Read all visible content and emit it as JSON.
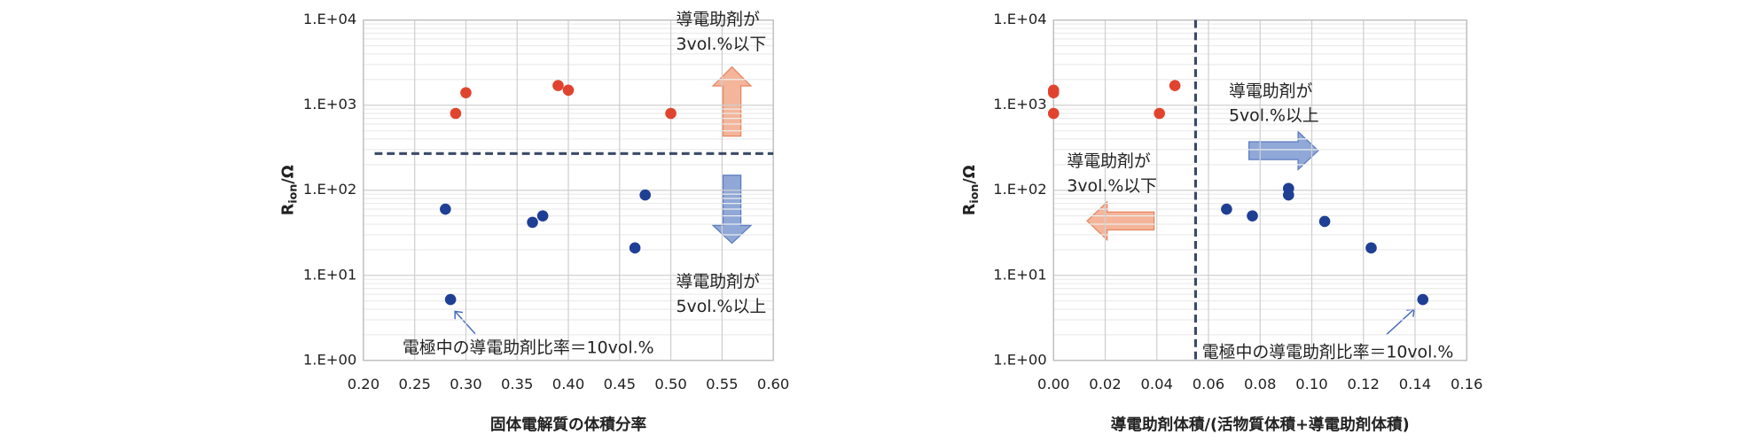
{
  "chart_data": [
    {
      "type": "scatter",
      "x_label": "固体電解質の体積分率",
      "y_label": {
        "main": "R",
        "sub": "ion",
        "rest": "/Ω"
      },
      "xlim": [
        0.2,
        0.6
      ],
      "xticks": [
        {
          "value": 0.2,
          "label": "0.20"
        },
        0.25,
        {
          "value": 0.3,
          "label": "0.30"
        },
        0.35,
        {
          "value": 0.4,
          "label": "0.40"
        },
        0.45,
        {
          "value": 0.5,
          "label": "0.50"
        },
        0.55,
        {
          "value": 0.6,
          "label": "0.60"
        }
      ],
      "ylim": [
        1,
        10000
      ],
      "log_y": true,
      "grid": true,
      "minor_grid": true,
      "yticks": [
        {
          "value": 1,
          "label": "1.E+00"
        },
        {
          "value": 10,
          "label": "1.E+01"
        },
        {
          "value": 100,
          "label": "1.E+02"
        },
        {
          "value": 1000,
          "label": "1.E+03"
        },
        {
          "value": 10000,
          "label": "1.E+04"
        }
      ],
      "series": [
        {
          "color": "#e0442e",
          "x": [
            0.29,
            0.3,
            0.39,
            0.4,
            0.5
          ],
          "values": [
            800,
            1400,
            1700,
            1500,
            800
          ]
        },
        {
          "color": "#1f3f94",
          "x": [
            0.28,
            0.285,
            0.365,
            0.375,
            0.465,
            0.475
          ],
          "values": [
            60,
            5.2,
            42,
            50,
            21,
            88
          ]
        }
      ],
      "threshold": {
        "axis": "y",
        "value": 270,
        "color": "#3a4a66"
      },
      "annotations": [
        {
          "text": "導電助剤が",
          "color": "#333333"
        },
        {
          "text": "3vol.%以下",
          "color": "#e0442e"
        },
        {
          "text": "導電助剤が",
          "color": "#333333"
        },
        {
          "text": "5vol.%以上",
          "color": "#2a4a9c"
        },
        {
          "text": "電極中の導電助剤比率＝10vol.%",
          "color": "#4a6fc0"
        }
      ]
    },
    {
      "type": "scatter",
      "x_label": "導電助剤体積/(活物質体積+導電助剤体積)",
      "y_label": {
        "main": "R",
        "sub": "ion",
        "rest": "/Ω"
      },
      "xlim": [
        0,
        0.16
      ],
      "xticks": [
        {
          "value": 0,
          "label": "0.00"
        },
        0.02,
        0.04,
        0.06,
        0.08,
        {
          "value": 0.1,
          "label": "0.10"
        },
        0.12,
        0.14,
        0.16
      ],
      "ylim": [
        1,
        10000
      ],
      "log_y": true,
      "grid": true,
      "minor_grid": true,
      "yticks": [
        {
          "value": 1,
          "label": "1.E+00"
        },
        {
          "value": 10,
          "label": "1.E+01"
        },
        {
          "value": 100,
          "label": "1.E+02"
        },
        {
          "value": 1000,
          "label": "1.E+03"
        },
        {
          "value": 10000,
          "label": "1.E+04"
        }
      ],
      "series": [
        {
          "color": "#e0442e",
          "x": [
            0,
            0,
            0,
            0.041,
            0.047
          ],
          "values": [
            1500,
            1400,
            800,
            800,
            1700
          ]
        },
        {
          "color": "#1f3f94",
          "x": [
            0.067,
            0.077,
            0.091,
            0.091,
            0.105,
            0.123,
            0.143
          ],
          "values": [
            60,
            50,
            105,
            88,
            43,
            21,
            5.2
          ]
        }
      ],
      "threshold": {
        "axis": "x",
        "value": 0.055,
        "color": "#3a4a66"
      },
      "annotations": [
        {
          "text": "導電助剤が",
          "color": "#333333"
        },
        {
          "text": "5vol.%以上",
          "color": "#2a4a9c"
        },
        {
          "text": "導電助剤が",
          "color": "#333333"
        },
        {
          "text": "3vol.%以下",
          "color": "#e0442e"
        },
        {
          "text": "電極中の導電助剤比率＝10vol.%",
          "color": "#4a6fc0"
        }
      ]
    }
  ]
}
